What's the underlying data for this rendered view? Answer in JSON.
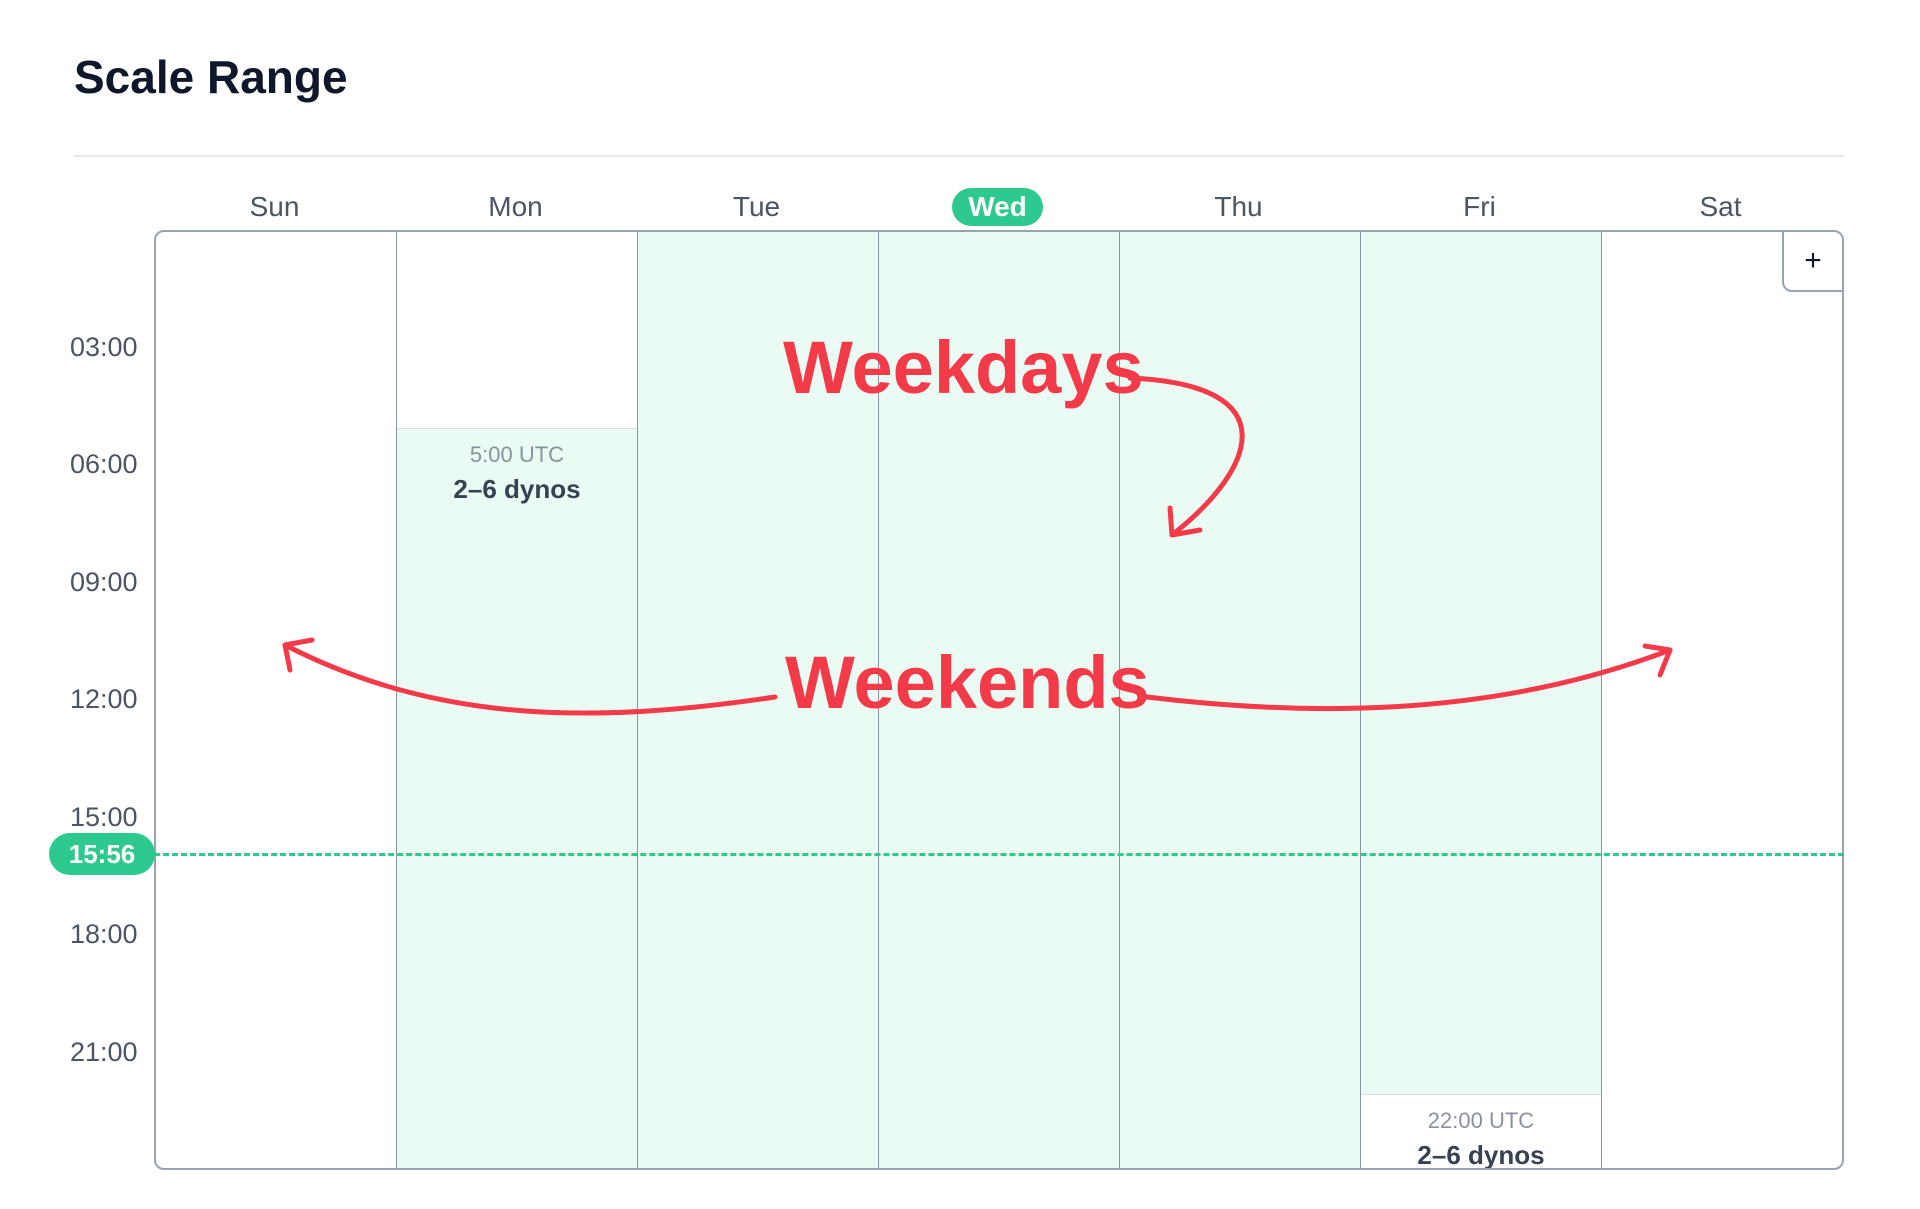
{
  "page": {
    "title": "Scale Range"
  },
  "calendar": {
    "today_index": 3,
    "days": [
      {
        "label": "Sun",
        "blocks": []
      },
      {
        "label": "Mon",
        "blocks": [
          {
            "start_hour": 5,
            "end_hour": 24,
            "start_label": "5:00 UTC",
            "dynos_label": "2–6 dynos"
          }
        ]
      },
      {
        "label": "Tue",
        "blocks": [
          {
            "start_hour": 0,
            "end_hour": 24
          }
        ]
      },
      {
        "label": "Wed",
        "blocks": [
          {
            "start_hour": 0,
            "end_hour": 24
          }
        ]
      },
      {
        "label": "Thu",
        "blocks": [
          {
            "start_hour": 0,
            "end_hour": 24
          }
        ]
      },
      {
        "label": "Fri",
        "blocks": [
          {
            "start_hour": 0,
            "end_hour": 22
          },
          {
            "start_hour": 22,
            "end_hour": 24,
            "start_label": "22:00 UTC",
            "dynos_label": "2–6 dynos"
          }
        ]
      },
      {
        "label": "Sat",
        "blocks": []
      }
    ],
    "time_labels": [
      {
        "hour": 3,
        "label": "03:00"
      },
      {
        "hour": 6,
        "label": "06:00"
      },
      {
        "hour": 9,
        "label": "09:00"
      },
      {
        "hour": 12,
        "label": "12:00"
      },
      {
        "hour": 15,
        "label": "15:00"
      },
      {
        "hour": 18,
        "label": "18:00"
      },
      {
        "hour": 21,
        "label": "21:00"
      }
    ],
    "current_time": {
      "hour": 15.933,
      "label": "15:56"
    },
    "add_button_label": "+"
  },
  "annotations": {
    "weekdays": "Weekdays",
    "weekends": "Weekends"
  },
  "colors": {
    "accent": "#2ec98e",
    "active_fill": "#eafbf3",
    "annotation": "#f23a48",
    "grid_border": "#9aa3ad"
  }
}
